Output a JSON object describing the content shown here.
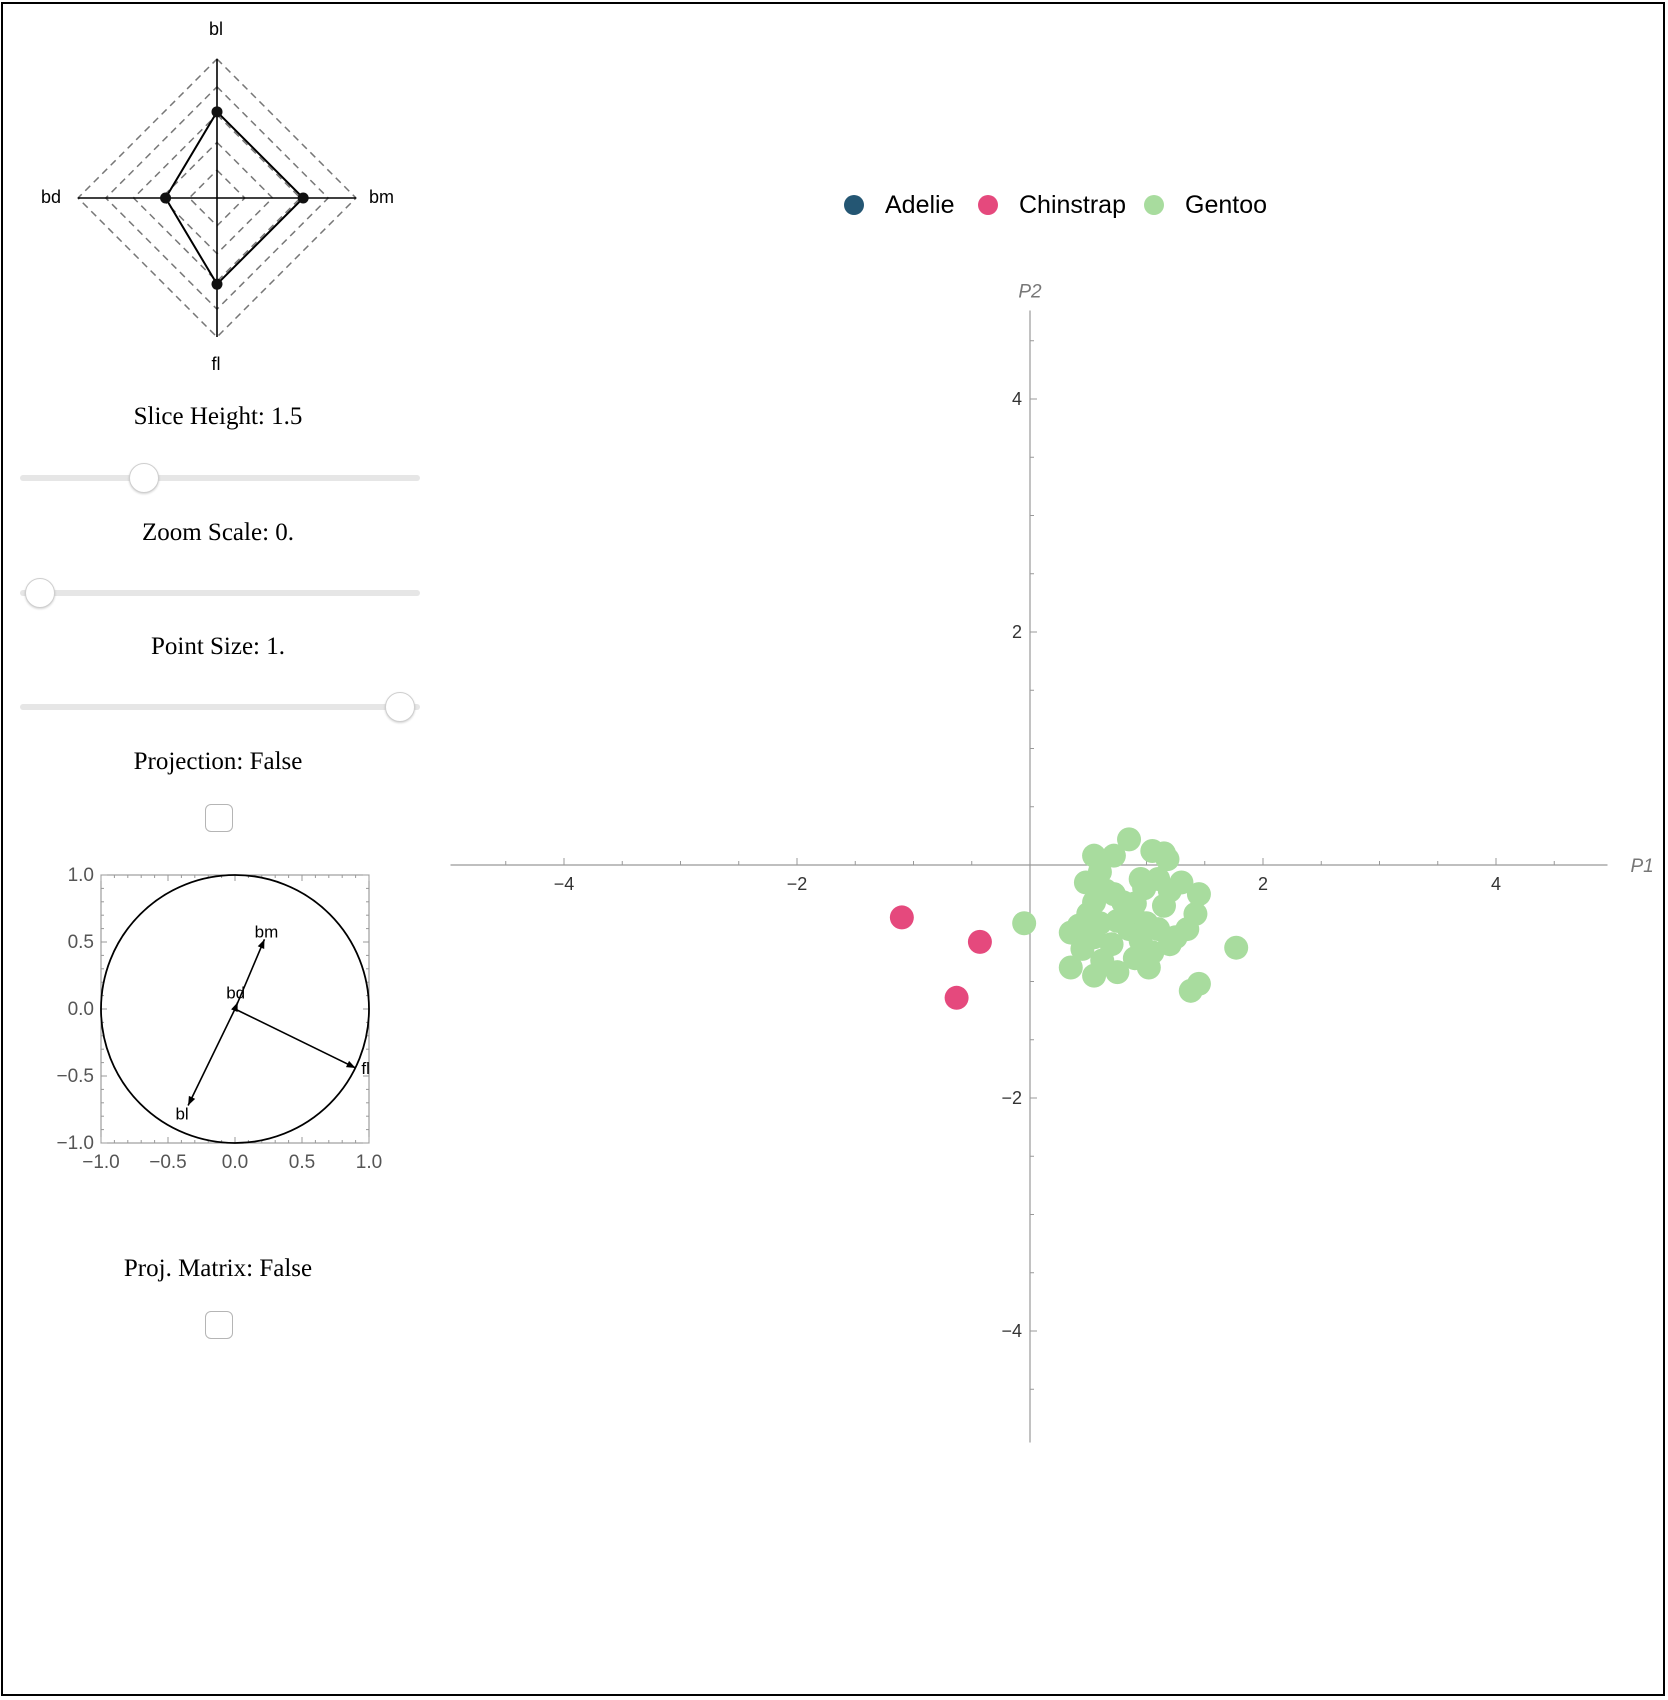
{
  "radar": {
    "axes": [
      "bl",
      "bm",
      "fl",
      "bd"
    ],
    "values": [
      0.62,
      0.62,
      0.62,
      0.37
    ],
    "grid_levels": [
      0.2,
      0.4,
      0.6,
      0.8,
      1.0
    ]
  },
  "controls": {
    "slice_height": {
      "label": "Slice Height: 1.5",
      "fraction": 0.31
    },
    "zoom_scale": {
      "label": "Zoom Scale: 0.",
      "fraction": 0.05
    },
    "point_size": {
      "label": "Point Size: 1.",
      "fraction": 0.95
    },
    "projection": {
      "label": "Projection: False",
      "checked": false
    },
    "proj_matrix": {
      "label": "Proj. Matrix: False",
      "checked": false
    }
  },
  "biplot": {
    "x_ticks": [
      "−1.0",
      "−0.5",
      "0.0",
      "0.5",
      "1.0"
    ],
    "y_ticks": [
      "1.0",
      "0.5",
      "0.0",
      "−0.5",
      "−1.0"
    ],
    "vectors": [
      {
        "label": "bm",
        "x": 0.22,
        "y": 0.52
      },
      {
        "label": "bd",
        "x": 0.02,
        "y": 0.05
      },
      {
        "label": "fl",
        "x": 0.9,
        "y": -0.44
      },
      {
        "label": "bl",
        "x": -0.35,
        "y": -0.72
      }
    ]
  },
  "chart_data": {
    "type": "scatter",
    "xlabel": "P1",
    "ylabel": "P2",
    "xlim": [
      -5,
      5
    ],
    "ylim": [
      -5,
      5
    ],
    "x_ticks": [
      -4,
      -2,
      2,
      4
    ],
    "y_ticks": [
      -4,
      -2,
      2,
      4
    ],
    "tick_labels": {
      "-4": "−4",
      "-2": "−2",
      "2": "2",
      "4": "4"
    },
    "legend_position": "top",
    "series": [
      {
        "name": "Adelie",
        "color": "#245673",
        "points": []
      },
      {
        "name": "Chinstrap",
        "color": "#e5497d",
        "points": [
          [
            -1.1,
            -0.45
          ],
          [
            -0.43,
            -0.66
          ],
          [
            -0.63,
            -1.14
          ]
        ]
      },
      {
        "name": "Gentoo",
        "color": "#a8dc9e",
        "points": [
          [
            0.55,
            0.08
          ],
          [
            0.72,
            0.08
          ],
          [
            0.85,
            0.22
          ],
          [
            1.05,
            0.12
          ],
          [
            1.15,
            0.1
          ],
          [
            1.18,
            0.05
          ],
          [
            0.6,
            -0.06
          ],
          [
            0.48,
            -0.15
          ],
          [
            0.72,
            -0.25
          ],
          [
            0.8,
            -0.32
          ],
          [
            0.95,
            -0.12
          ],
          [
            1.1,
            -0.12
          ],
          [
            1.2,
            -0.22
          ],
          [
            1.3,
            -0.15
          ],
          [
            1.45,
            -0.25
          ],
          [
            1.42,
            -0.42
          ],
          [
            1.35,
            -0.55
          ],
          [
            1.25,
            -0.62
          ],
          [
            0.98,
            -0.2
          ],
          [
            0.9,
            -0.33
          ],
          [
            0.55,
            -0.32
          ],
          [
            0.5,
            -0.42
          ],
          [
            0.35,
            -0.58
          ],
          [
            0.45,
            -0.72
          ],
          [
            0.6,
            -0.5
          ],
          [
            0.75,
            -0.48
          ],
          [
            0.85,
            -0.55
          ],
          [
            1.0,
            -0.5
          ],
          [
            1.1,
            -0.55
          ],
          [
            1.2,
            -0.68
          ],
          [
            1.05,
            -0.75
          ],
          [
            0.9,
            -0.8
          ],
          [
            0.75,
            -0.92
          ],
          [
            0.55,
            -0.95
          ],
          [
            0.35,
            -0.88
          ],
          [
            0.55,
            -0.62
          ],
          [
            0.7,
            -0.68
          ],
          [
            0.95,
            -0.65
          ],
          [
            1.15,
            -0.35
          ],
          [
            0.65,
            -0.22
          ],
          [
            -0.05,
            -0.5
          ],
          [
            1.77,
            -0.71
          ],
          [
            1.45,
            -1.02
          ],
          [
            1.38,
            -1.08
          ],
          [
            0.88,
            -0.38
          ],
          [
            1.02,
            -0.88
          ],
          [
            0.62,
            -0.82
          ],
          [
            0.42,
            -0.52
          ]
        ]
      }
    ]
  }
}
